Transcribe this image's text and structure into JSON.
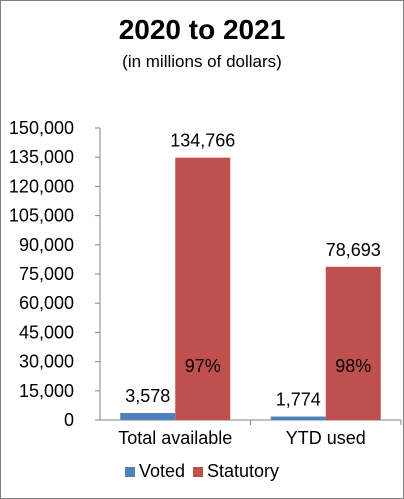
{
  "chart_data": {
    "type": "bar",
    "title": "2020 to 2021",
    "subtitle": "(in millions of dollars)",
    "categories": [
      "Total available",
      "YTD used"
    ],
    "series": [
      {
        "name": "Voted",
        "color": "#4f81bd",
        "values": [
          3578,
          1774
        ],
        "value_labels": [
          "3,578",
          "1,774"
        ]
      },
      {
        "name": "Statutory",
        "color": "#c0504d",
        "values": [
          134766,
          78693
        ],
        "value_labels": [
          "134,766",
          "78,693"
        ],
        "percent_labels": [
          "97%",
          "98%"
        ]
      }
    ],
    "ylim": [
      0,
      150000
    ],
    "yticks": [
      0,
      15000,
      30000,
      45000,
      60000,
      75000,
      90000,
      105000,
      120000,
      135000,
      150000
    ],
    "ytick_labels": [
      "0",
      "15,000",
      "30,000",
      "45,000",
      "60,000",
      "75,000",
      "90,000",
      "105,000",
      "120,000",
      "135,000",
      "150,000"
    ],
    "grid": false,
    "legend_position": "bottom"
  }
}
